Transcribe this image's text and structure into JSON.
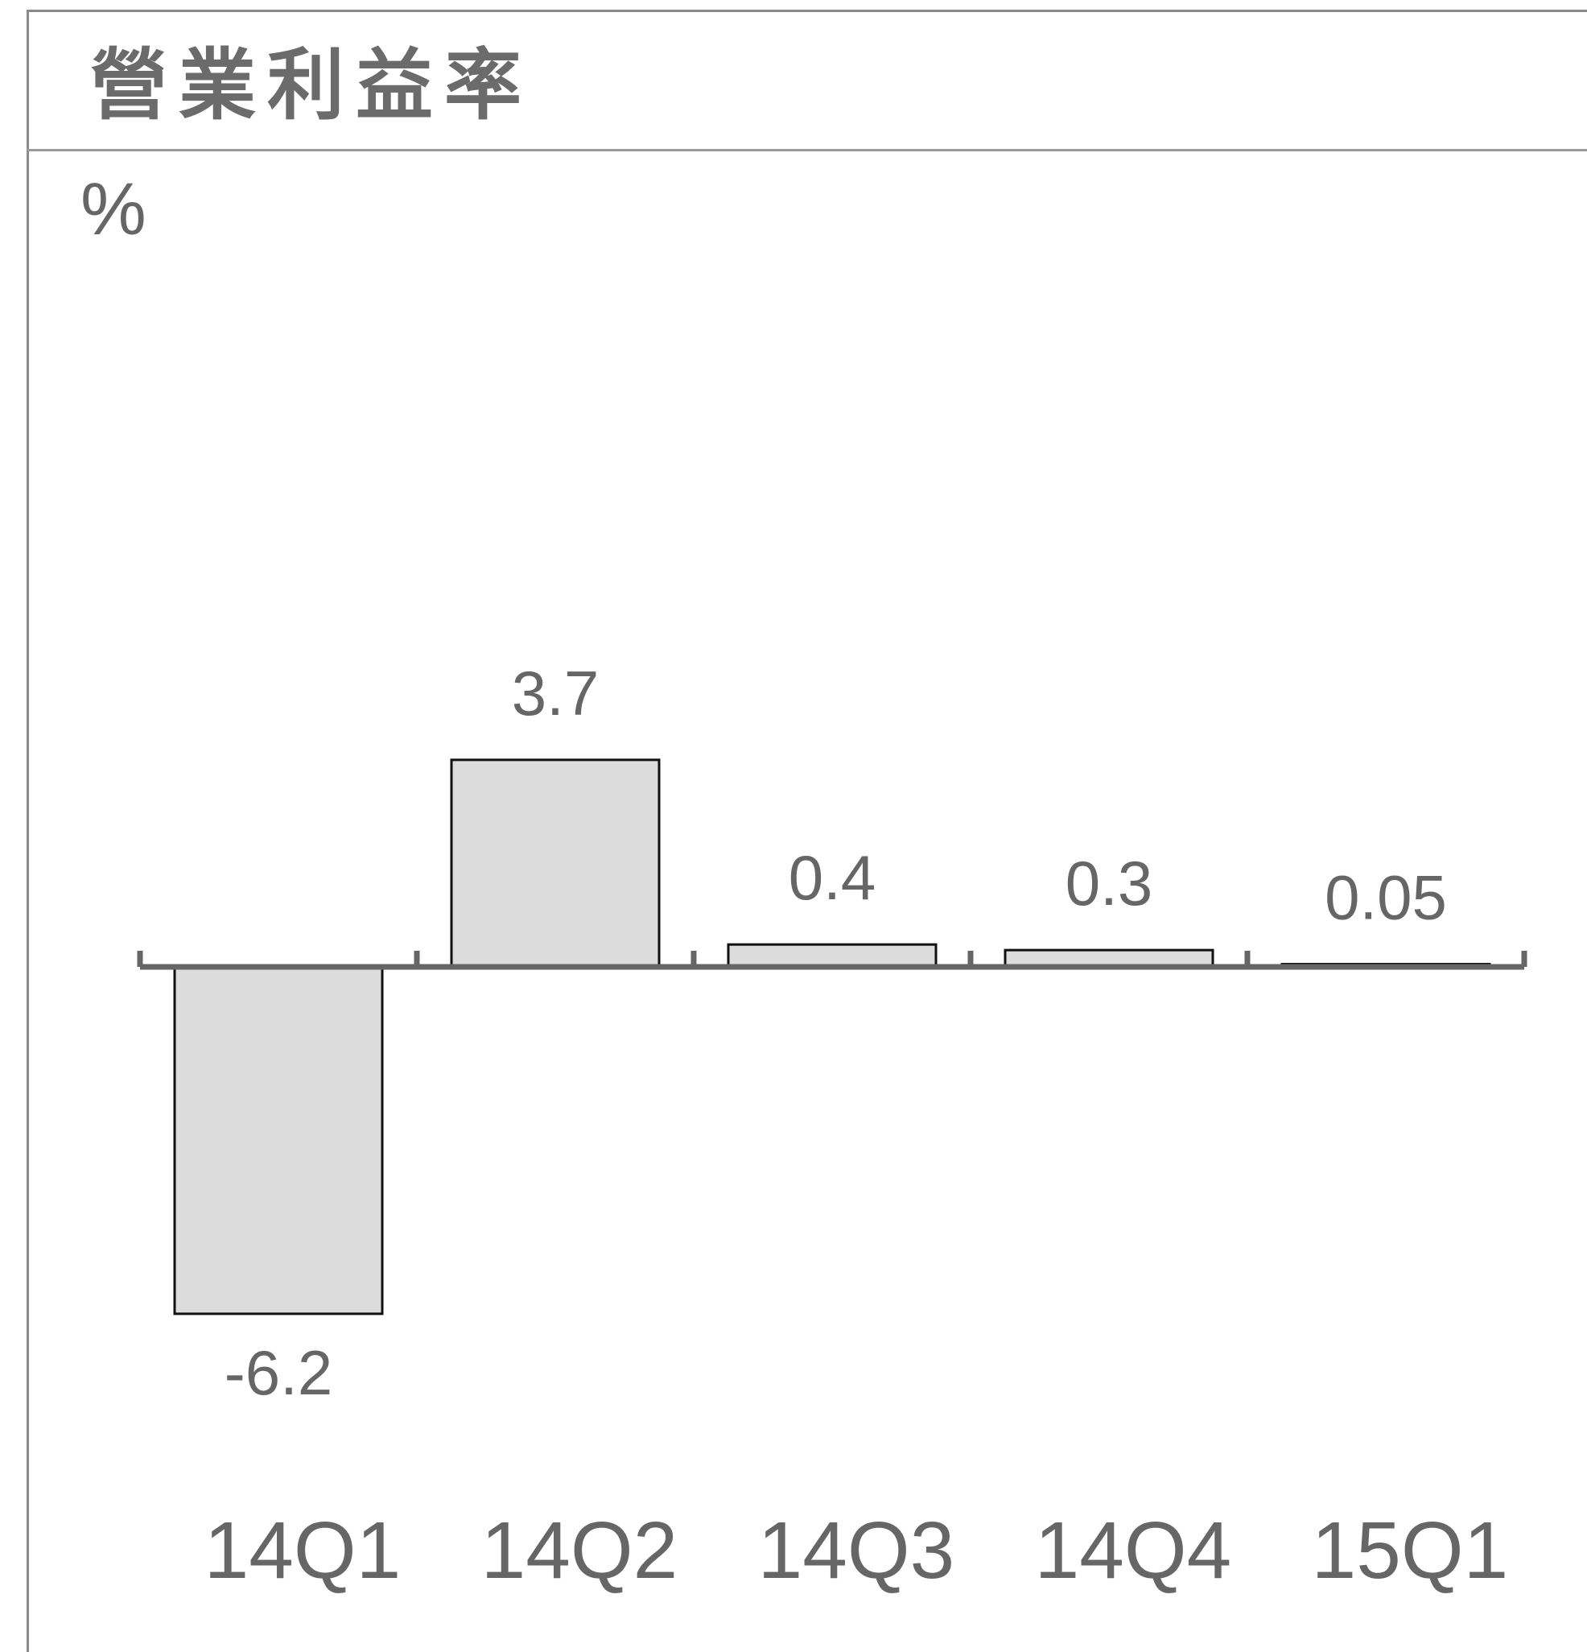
{
  "chart_data": {
    "type": "bar",
    "title": "營業利益率",
    "ylabel": "%",
    "categories": [
      "14Q1",
      "14Q2",
      "14Q3",
      "14Q4",
      "15Q1"
    ],
    "values": [
      -6.2,
      3.7,
      0.4,
      0.3,
      0.05
    ],
    "data_labels": [
      "-6.2",
      "3.7",
      "0.4",
      "0.3",
      "0.05"
    ],
    "bar_color": "#dcdcdc",
    "bar_edge_color": "#111111",
    "axis_color": "#666666",
    "text_color": "#666666",
    "grid": false
  }
}
